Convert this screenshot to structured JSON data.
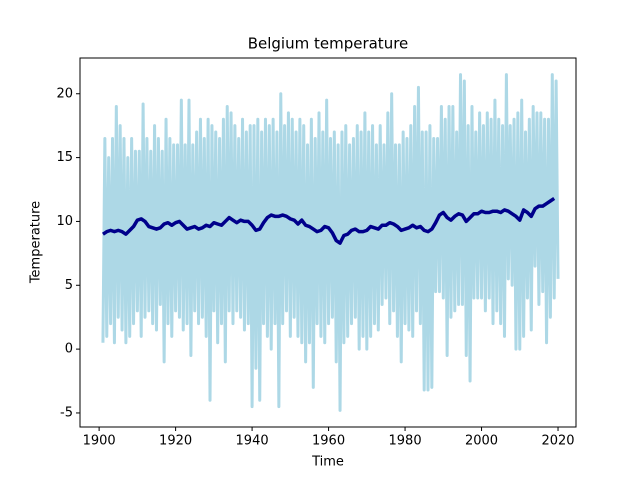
{
  "chart_data": {
    "type": "line",
    "title": "Belgium temperature",
    "x_label": "Time",
    "y_label": "Temperature",
    "xlim": [
      1895,
      2024.7
    ],
    "ylim": [
      -6.1,
      22.8
    ],
    "xticks": [
      1900,
      1920,
      1940,
      1960,
      1980,
      2000,
      2020
    ],
    "yticks": [
      -5,
      0,
      5,
      10,
      15,
      20
    ],
    "grid": false,
    "series": [
      {
        "color": "#add8e6",
        "width": 3,
        "x": [
          1901,
          1901.5,
          1902,
          1902.5,
          1903,
          1903.5,
          1904,
          1904.5,
          1905,
          1905.5,
          1906,
          1906.5,
          1907,
          1907.5,
          1908,
          1908.5,
          1909,
          1909.5,
          1910,
          1910.5,
          1911,
          1911.5,
          1912,
          1912.5,
          1913,
          1913.5,
          1914,
          1914.5,
          1915,
          1915.5,
          1916,
          1916.5,
          1917,
          1917.5,
          1918,
          1918.5,
          1919,
          1919.5,
          1920,
          1920.5,
          1921,
          1921.5,
          1922,
          1922.5,
          1923,
          1923.5,
          1924,
          1924.5,
          1925,
          1925.5,
          1926,
          1926.5,
          1927,
          1927.5,
          1928,
          1928.5,
          1929,
          1929.5,
          1930,
          1930.5,
          1931,
          1931.5,
          1932,
          1932.5,
          1933,
          1933.5,
          1934,
          1934.5,
          1935,
          1935.5,
          1936,
          1936.5,
          1937,
          1937.5,
          1938,
          1938.5,
          1939,
          1939.5,
          1940,
          1940.5,
          1941,
          1941.5,
          1942,
          1942.5,
          1943,
          1943.5,
          1944,
          1944.5,
          1945,
          1945.5,
          1946,
          1946.5,
          1947,
          1947.5,
          1948,
          1948.5,
          1949,
          1949.5,
          1950,
          1950.5,
          1951,
          1951.5,
          1952,
          1952.5,
          1953,
          1953.5,
          1954,
          1954.5,
          1955,
          1955.5,
          1956,
          1956.5,
          1957,
          1957.5,
          1958,
          1958.5,
          1959,
          1959.5,
          1960,
          1960.5,
          1961,
          1961.5,
          1962,
          1962.5,
          1963,
          1963.5,
          1964,
          1964.5,
          1965,
          1965.5,
          1966,
          1966.5,
          1967,
          1967.5,
          1968,
          1968.5,
          1969,
          1969.5,
          1970,
          1970.5,
          1971,
          1971.5,
          1972,
          1972.5,
          1973,
          1973.5,
          1974,
          1974.5,
          1975,
          1975.5,
          1976,
          1976.5,
          1977,
          1977.5,
          1978,
          1978.5,
          1979,
          1979.5,
          1980,
          1980.5,
          1981,
          1981.5,
          1982,
          1982.5,
          1983,
          1983.5,
          1984,
          1984.5,
          1985,
          1985.5,
          1986,
          1986.5,
          1987,
          1987.5,
          1988,
          1988.5,
          1989,
          1989.5,
          1990,
          1990.5,
          1991,
          1991.5,
          1992,
          1992.5,
          1993,
          1993.5,
          1994,
          1994.5,
          1995,
          1995.5,
          1996,
          1996.5,
          1997,
          1997.5,
          1998,
          1998.5,
          1999,
          1999.5,
          2000,
          2000.5,
          2001,
          2001.5,
          2002,
          2002.5,
          2003,
          2003.5,
          2004,
          2004.5,
          2005,
          2005.5,
          2006,
          2006.5,
          2007,
          2007.5,
          2008,
          2008.5,
          2009,
          2009.5,
          2010,
          2010.5,
          2011,
          2011.5,
          2012,
          2012.5,
          2013,
          2013.5,
          2014,
          2014.5,
          2015,
          2015.5,
          2016,
          2016.5,
          2017,
          2017.5,
          2018,
          2018.5,
          2019,
          2019.5,
          2020
        ],
        "values": [
          0.5,
          16.5,
          1,
          15,
          2,
          16.5,
          0.5,
          19,
          2.5,
          17.5,
          1.5,
          16.5,
          0.5,
          15,
          1,
          16.5,
          2,
          15.5,
          3,
          15.5,
          1,
          19.2,
          2.5,
          16.5,
          3,
          15.5,
          2,
          17.5,
          1.5,
          16.5,
          3.5,
          15.5,
          -1,
          18,
          2,
          16.5,
          1,
          16,
          3,
          16,
          2.5,
          19.5,
          1.5,
          16,
          2,
          19.5,
          -0.5,
          16,
          3,
          17,
          2,
          18,
          2.5,
          16.5,
          1,
          18,
          -4,
          17.5,
          3,
          17,
          0.5,
          16.5,
          2,
          18,
          -1,
          19,
          3,
          18.5,
          2,
          17.5,
          3,
          16.5,
          2.5,
          18,
          1.5,
          17,
          2,
          17.5,
          -4.5,
          17.5,
          -1.5,
          18,
          -4,
          17,
          2,
          18,
          1,
          17.5,
          0,
          18,
          2,
          17,
          -4.5,
          20,
          2,
          17.5,
          3,
          18.5,
          1,
          18,
          2.5,
          17,
          1,
          18,
          0.5,
          17.5,
          -1,
          16,
          0.5,
          18,
          -3,
          16.5,
          2,
          18.5,
          1,
          17,
          0.5,
          19.5,
          2,
          16.5,
          2.5,
          17,
          -1,
          16,
          -4.8,
          17,
          0.5,
          17.5,
          1,
          16,
          2,
          16.5,
          2.5,
          17.5,
          0,
          17,
          1,
          18.5,
          0,
          17,
          1,
          17.5,
          2,
          16,
          1.5,
          17.5,
          3.5,
          16,
          4,
          18.5,
          2,
          20,
          3,
          16,
          1,
          16,
          -1,
          17,
          2,
          16.5,
          1.5,
          17.5,
          1,
          19,
          3,
          20.5,
          2,
          17,
          -3.2,
          17,
          -3.2,
          17.5,
          -3,
          16.5,
          4.5,
          16.5,
          4.5,
          19,
          4,
          18,
          -0.5,
          19,
          2.5,
          19,
          3,
          17,
          3.5,
          21.5,
          3.5,
          21,
          -0.5,
          17.5,
          -2.5,
          19,
          4,
          17,
          4,
          18.5,
          4,
          17.5,
          3,
          18.5,
          4,
          18,
          2,
          19.5,
          3,
          18,
          2,
          17.5,
          1,
          21.5,
          5.5,
          17.5,
          5,
          18,
          0,
          18.5,
          0,
          19.5,
          1,
          17,
          4,
          18,
          1.5,
          19,
          6.5,
          18.5,
          3.5,
          18.5,
          4.5,
          18,
          0.5,
          18,
          2.5,
          21.5,
          4,
          21,
          5.5
        ]
      },
      {
        "color": "#00008b",
        "width": 3.5,
        "x": [
          1901,
          1902,
          1903,
          1904,
          1905,
          1906,
          1907,
          1908,
          1909,
          1910,
          1911,
          1912,
          1913,
          1914,
          1915,
          1916,
          1917,
          1918,
          1919,
          1920,
          1921,
          1922,
          1923,
          1924,
          1925,
          1926,
          1927,
          1928,
          1929,
          1930,
          1931,
          1932,
          1933,
          1934,
          1935,
          1936,
          1937,
          1938,
          1939,
          1940,
          1941,
          1942,
          1943,
          1944,
          1945,
          1946,
          1947,
          1948,
          1949,
          1950,
          1951,
          1952,
          1953,
          1954,
          1955,
          1956,
          1957,
          1958,
          1959,
          1960,
          1961,
          1962,
          1963,
          1964,
          1965,
          1966,
          1967,
          1968,
          1969,
          1970,
          1971,
          1972,
          1973,
          1974,
          1975,
          1976,
          1977,
          1978,
          1979,
          1980,
          1981,
          1982,
          1983,
          1984,
          1985,
          1986,
          1987,
          1988,
          1989,
          1990,
          1991,
          1992,
          1993,
          1994,
          1995,
          1996,
          1997,
          1998,
          1999,
          2000,
          2001,
          2002,
          2003,
          2004,
          2005,
          2006,
          2007,
          2008,
          2009,
          2010,
          2011,
          2012,
          2013,
          2014,
          2015,
          2016,
          2017,
          2018,
          2019
        ],
        "values": [
          9.0,
          9.2,
          9.3,
          9.2,
          9.3,
          9.2,
          9.0,
          9.3,
          9.6,
          10.1,
          10.2,
          10.0,
          9.6,
          9.5,
          9.4,
          9.5,
          9.8,
          9.9,
          9.7,
          9.9,
          10.0,
          9.7,
          9.4,
          9.5,
          9.6,
          9.4,
          9.5,
          9.7,
          9.6,
          9.9,
          9.8,
          9.7,
          10.0,
          10.3,
          10.1,
          9.9,
          10.1,
          10.0,
          10.0,
          9.7,
          9.3,
          9.4,
          9.9,
          10.3,
          10.5,
          10.4,
          10.4,
          10.5,
          10.4,
          10.2,
          10.1,
          9.8,
          10.1,
          9.7,
          9.6,
          9.4,
          9.2,
          9.3,
          9.6,
          9.5,
          9.1,
          8.5,
          8.3,
          8.9,
          9.0,
          9.3,
          9.4,
          9.2,
          9.2,
          9.3,
          9.6,
          9.5,
          9.4,
          9.7,
          9.7,
          9.9,
          9.8,
          9.6,
          9.3,
          9.4,
          9.5,
          9.7,
          9.5,
          9.6,
          9.3,
          9.2,
          9.4,
          9.9,
          10.5,
          10.7,
          10.3,
          10.1,
          10.4,
          10.6,
          10.5,
          10.0,
          10.3,
          10.6,
          10.6,
          10.8,
          10.7,
          10.7,
          10.8,
          10.8,
          10.7,
          10.9,
          10.8,
          10.6,
          10.4,
          10.1,
          10.9,
          10.7,
          10.4,
          11.0,
          11.2,
          11.2,
          11.4,
          11.6,
          11.8
        ]
      }
    ]
  }
}
